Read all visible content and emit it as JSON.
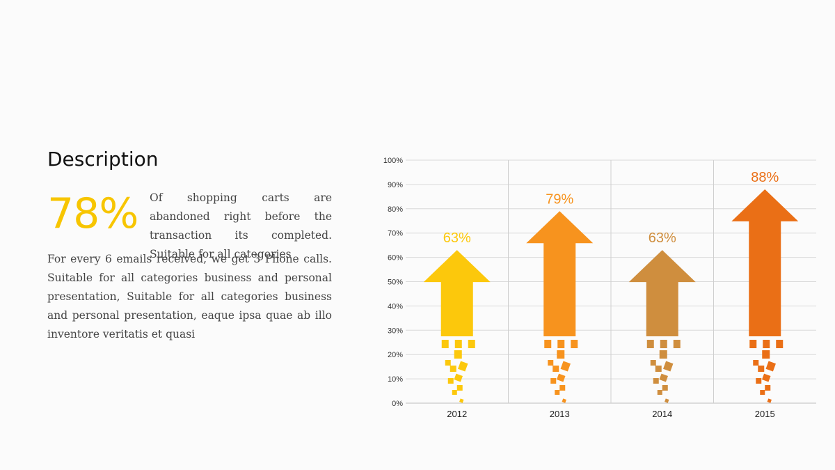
{
  "description": {
    "heading": "Description",
    "stat_value": "78%",
    "stat_text": "Of shopping carts are abandoned right before the transaction its completed. Suitable for all categories",
    "body": "For every 6 emails received, we get 3 Phone calls. Suitable for all categories business and personal presentation, Suitable for all categories business and personal presentation, eaque ipsa quae ab illo inventore veritatis et quasi"
  },
  "chart_data": {
    "type": "bar",
    "categories": [
      "2012",
      "2013",
      "2014",
      "2015"
    ],
    "values": [
      63,
      79,
      63,
      88
    ],
    "value_labels": [
      "63%",
      "79%",
      "63%",
      "88%"
    ],
    "ylim": [
      0,
      100
    ],
    "yticks": [
      "0%",
      "10%",
      "20%",
      "30%",
      "40%",
      "50%",
      "60%",
      "70%",
      "80%",
      "90%",
      "100%"
    ],
    "colors": [
      "#fcc80c",
      "#f7931e",
      "#cf8e3e",
      "#ea6f16"
    ],
    "grid": true,
    "xlabel": "",
    "ylabel": "",
    "title": ""
  }
}
